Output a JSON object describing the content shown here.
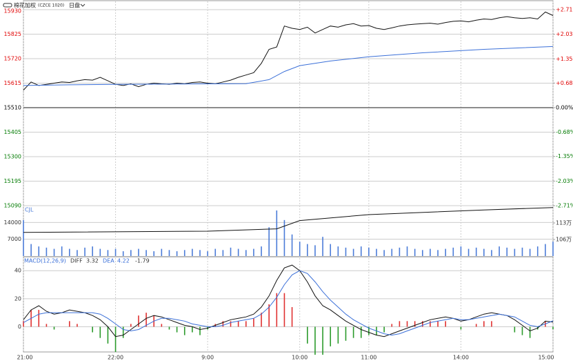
{
  "header": {
    "instrument": "棉花加权",
    "code": "(CZCE 1020)",
    "session": "日盘"
  },
  "chart_data": [
    {
      "type": "line",
      "up_color": "#e00000",
      "down_color": "#007a00",
      "base_color": "#000000",
      "grid": true,
      "xlim": [
        0,
        345
      ],
      "xticks": [
        {
          "value": 0,
          "label": "21:00"
        },
        {
          "value": 60,
          "label": "22:00"
        },
        {
          "value": 120,
          "label": "9:00"
        },
        {
          "value": 180,
          "label": "10:00"
        },
        {
          "value": 225,
          "label": "11:00"
        },
        {
          "value": 285,
          "label": "14:00"
        },
        {
          "value": 345,
          "label": "15:00"
        }
      ],
      "ylim": [
        15090,
        15930
      ],
      "yticks": [
        15930,
        15825,
        15720,
        15615,
        15510,
        15405,
        15300,
        15195,
        15090
      ],
      "y2lim": [
        -2.71,
        2.71
      ],
      "y2ticks": [
        {
          "value": 2.71,
          "label": "+2.71%"
        },
        {
          "value": 2.03,
          "label": "+2.03%"
        },
        {
          "value": 1.35,
          "label": "+1.35%"
        },
        {
          "value": 0.68,
          "label": "+0.68%"
        },
        {
          "value": 0,
          "label": "0.00%"
        },
        {
          "value": -0.68,
          "label": "-0.68%"
        },
        {
          "value": -1.35,
          "label": "-1.35%"
        },
        {
          "value": -2.03,
          "label": "-2.03%"
        },
        {
          "value": -2.71,
          "label": "-2.71%"
        }
      ],
      "series": [
        {
          "color": "#111111",
          "x": [
            0,
            5,
            10,
            15,
            20,
            25,
            30,
            35,
            40,
            45,
            50,
            55,
            60,
            65,
            70,
            75,
            80,
            85,
            90,
            95,
            100,
            105,
            110,
            115,
            120,
            125,
            130,
            135,
            140,
            145,
            150,
            155,
            160,
            165,
            170,
            175,
            180,
            185,
            190,
            195,
            200,
            205,
            210,
            215,
            220,
            225,
            230,
            235,
            240,
            245,
            250,
            255,
            260,
            265,
            270,
            275,
            280,
            285,
            290,
            295,
            300,
            305,
            310,
            315,
            320,
            325,
            330,
            335,
            340,
            345
          ],
          "values": [
            15585,
            15620,
            15605,
            15610,
            15615,
            15620,
            15618,
            15625,
            15630,
            15628,
            15640,
            15625,
            15610,
            15605,
            15612,
            15600,
            15610,
            15615,
            15612,
            15610,
            15615,
            15612,
            15618,
            15620,
            15615,
            15612,
            15620,
            15628,
            15640,
            15650,
            15660,
            15700,
            15760,
            15770,
            15860,
            15850,
            15845,
            15855,
            15830,
            15845,
            15860,
            15855,
            15865,
            15870,
            15860,
            15862,
            15850,
            15845,
            15852,
            15860,
            15865,
            15868,
            15870,
            15872,
            15868,
            15875,
            15880,
            15882,
            15878,
            15885,
            15890,
            15888,
            15895,
            15900,
            15895,
            15892,
            15895,
            15890,
            15920,
            15905
          ]
        },
        {
          "color": "#3a6fd8",
          "x": [
            0,
            30,
            60,
            90,
            120,
            145,
            160,
            170,
            180,
            200,
            225,
            260,
            300,
            345
          ],
          "values": [
            15605,
            15608,
            15610,
            15611,
            15612,
            15613,
            15630,
            15665,
            15690,
            15710,
            15728,
            15745,
            15760,
            15772
          ]
        }
      ]
    },
    {
      "type": "bar",
      "legend": "CJL",
      "ylim": [
        0,
        21000
      ],
      "yticks": [
        7000,
        14000
      ],
      "y2lim": [
        990000,
        1203000
      ],
      "y2ticks": [
        {
          "value": 1130000,
          "label": "113万"
        },
        {
          "value": 1060000,
          "label": "106万"
        }
      ],
      "series": [
        {
          "color": "#4a7bd8",
          "x": [
            0,
            5,
            10,
            15,
            20,
            25,
            30,
            35,
            40,
            45,
            50,
            55,
            60,
            65,
            70,
            75,
            80,
            85,
            90,
            95,
            100,
            105,
            110,
            115,
            120,
            125,
            130,
            135,
            140,
            145,
            150,
            155,
            160,
            165,
            170,
            175,
            180,
            185,
            190,
            195,
            200,
            205,
            210,
            215,
            220,
            225,
            230,
            235,
            240,
            245,
            250,
            255,
            260,
            265,
            270,
            275,
            280,
            285,
            290,
            295,
            300,
            305,
            310,
            315,
            320,
            325,
            330,
            335,
            340,
            345
          ],
          "values": [
            15000,
            5000,
            4000,
            3500,
            3000,
            4000,
            3000,
            2500,
            3500,
            4000,
            3000,
            2500,
            3000,
            2000,
            2500,
            3000,
            2500,
            2000,
            3000,
            2500,
            2000,
            2500,
            3000,
            2500,
            2000,
            3000,
            2500,
            3500,
            3000,
            2500,
            3000,
            4000,
            12000,
            19000,
            15000,
            9000,
            6000,
            5000,
            4500,
            8000,
            5000,
            4000,
            3500,
            3000,
            4000,
            3500,
            3000,
            2500,
            3000,
            3500,
            4000,
            3000,
            2500,
            3000,
            2500,
            3000,
            3500,
            4000,
            3000,
            3500,
            3000,
            2500,
            4000,
            3500,
            3000,
            3500,
            3000,
            4000,
            5000,
            6000
          ]
        },
        {
          "color": "#111111",
          "axis": "y2",
          "x": [
            0,
            120,
            165,
            180,
            225,
            300,
            345
          ],
          "values": [
            1090000,
            1095000,
            1105000,
            1140000,
            1165000,
            1185000,
            1195000
          ]
        }
      ]
    },
    {
      "type": "macd",
      "up_color": "#e03030",
      "down_color": "#2a9a2a",
      "ylim": [
        -18,
        47
      ],
      "yticks": [
        40,
        20,
        0
      ],
      "series": [
        {
          "name": "MACD(12,26,9)",
          "x": [
            0,
            5,
            10,
            15,
            20,
            25,
            30,
            35,
            40,
            45,
            50,
            55,
            60,
            65,
            70,
            75,
            80,
            85,
            90,
            95,
            100,
            105,
            110,
            115,
            120,
            125,
            130,
            135,
            140,
            145,
            150,
            155,
            160,
            165,
            170,
            175,
            180,
            185,
            190,
            195,
            200,
            205,
            210,
            215,
            220,
            225,
            230,
            235,
            240,
            245,
            250,
            255,
            260,
            265,
            270,
            275,
            280,
            285,
            290,
            295,
            300,
            305,
            310,
            315,
            320,
            325,
            330,
            335,
            340,
            345
          ],
          "values": [
            4,
            12,
            12,
            2,
            -2,
            0,
            4,
            2,
            0,
            -4,
            -8,
            -12,
            -18,
            -8,
            2,
            8,
            10,
            8,
            2,
            -2,
            -4,
            -6,
            -4,
            -6,
            -2,
            2,
            4,
            4,
            4,
            4,
            6,
            10,
            16,
            24,
            24,
            14,
            0,
            -12,
            -20,
            -20,
            -14,
            -12,
            -10,
            -8,
            -8,
            -6,
            -6,
            -4,
            2,
            4,
            4,
            4,
            4,
            4,
            4,
            4,
            0,
            -2,
            0,
            2,
            4,
            4,
            0,
            0,
            -4,
            -6,
            -8,
            -2,
            4,
            -1.79
          ]
        },
        {
          "name": "DIFF",
          "color": "#111111",
          "x": [
            0,
            5,
            10,
            15,
            20,
            25,
            30,
            35,
            40,
            45,
            50,
            55,
            60,
            65,
            70,
            75,
            80,
            85,
            90,
            95,
            100,
            105,
            110,
            115,
            120,
            125,
            130,
            135,
            140,
            145,
            150,
            155,
            160,
            165,
            170,
            175,
            180,
            185,
            190,
            195,
            200,
            205,
            210,
            215,
            220,
            225,
            230,
            235,
            240,
            245,
            250,
            255,
            260,
            265,
            270,
            275,
            280,
            285,
            290,
            295,
            300,
            305,
            310,
            315,
            320,
            325,
            330,
            335,
            340,
            345
          ],
          "values": [
            5,
            12,
            15,
            11,
            9,
            10,
            12,
            11,
            10,
            8,
            5,
            0,
            -7,
            -6,
            -2,
            2,
            6,
            8,
            7,
            5,
            3,
            1,
            0,
            -2,
            -1,
            1,
            3,
            5,
            6,
            7,
            9,
            14,
            22,
            33,
            42,
            44,
            40,
            32,
            22,
            15,
            12,
            8,
            4,
            1,
            -2,
            -4,
            -6,
            -7,
            -5,
            -3,
            -1,
            1,
            3,
            5,
            6,
            7,
            6,
            4,
            5,
            7,
            9,
            10,
            9,
            8,
            5,
            1,
            -3,
            -1,
            4,
            3.32
          ]
        },
        {
          "name": "DEA",
          "color": "#3a6fd8",
          "x": [
            0,
            5,
            10,
            15,
            20,
            25,
            30,
            35,
            40,
            45,
            50,
            55,
            60,
            65,
            70,
            75,
            80,
            85,
            90,
            95,
            100,
            105,
            110,
            115,
            120,
            125,
            130,
            135,
            140,
            145,
            150,
            155,
            160,
            165,
            170,
            175,
            180,
            185,
            190,
            195,
            200,
            205,
            210,
            215,
            220,
            225,
            230,
            235,
            240,
            245,
            250,
            255,
            260,
            265,
            270,
            275,
            280,
            285,
            290,
            295,
            300,
            305,
            310,
            315,
            320,
            325,
            330,
            335,
            340,
            345
          ],
          "values": [
            3,
            6,
            9,
            10,
            10,
            10,
            10,
            10,
            10,
            10,
            9,
            6,
            2,
            -2,
            -3,
            -2,
            1,
            4,
            6,
            6,
            5,
            4,
            2,
            1,
            0,
            0,
            1,
            3,
            4,
            5,
            6,
            9,
            14,
            21,
            30,
            37,
            40,
            38,
            32,
            25,
            19,
            14,
            9,
            5,
            2,
            -1,
            -3,
            -5,
            -6,
            -5,
            -3,
            -1,
            1,
            3,
            4,
            5,
            6,
            5,
            5,
            6,
            7,
            8,
            9,
            8,
            7,
            4,
            1,
            0,
            2,
            4.22
          ]
        }
      ]
    }
  ]
}
